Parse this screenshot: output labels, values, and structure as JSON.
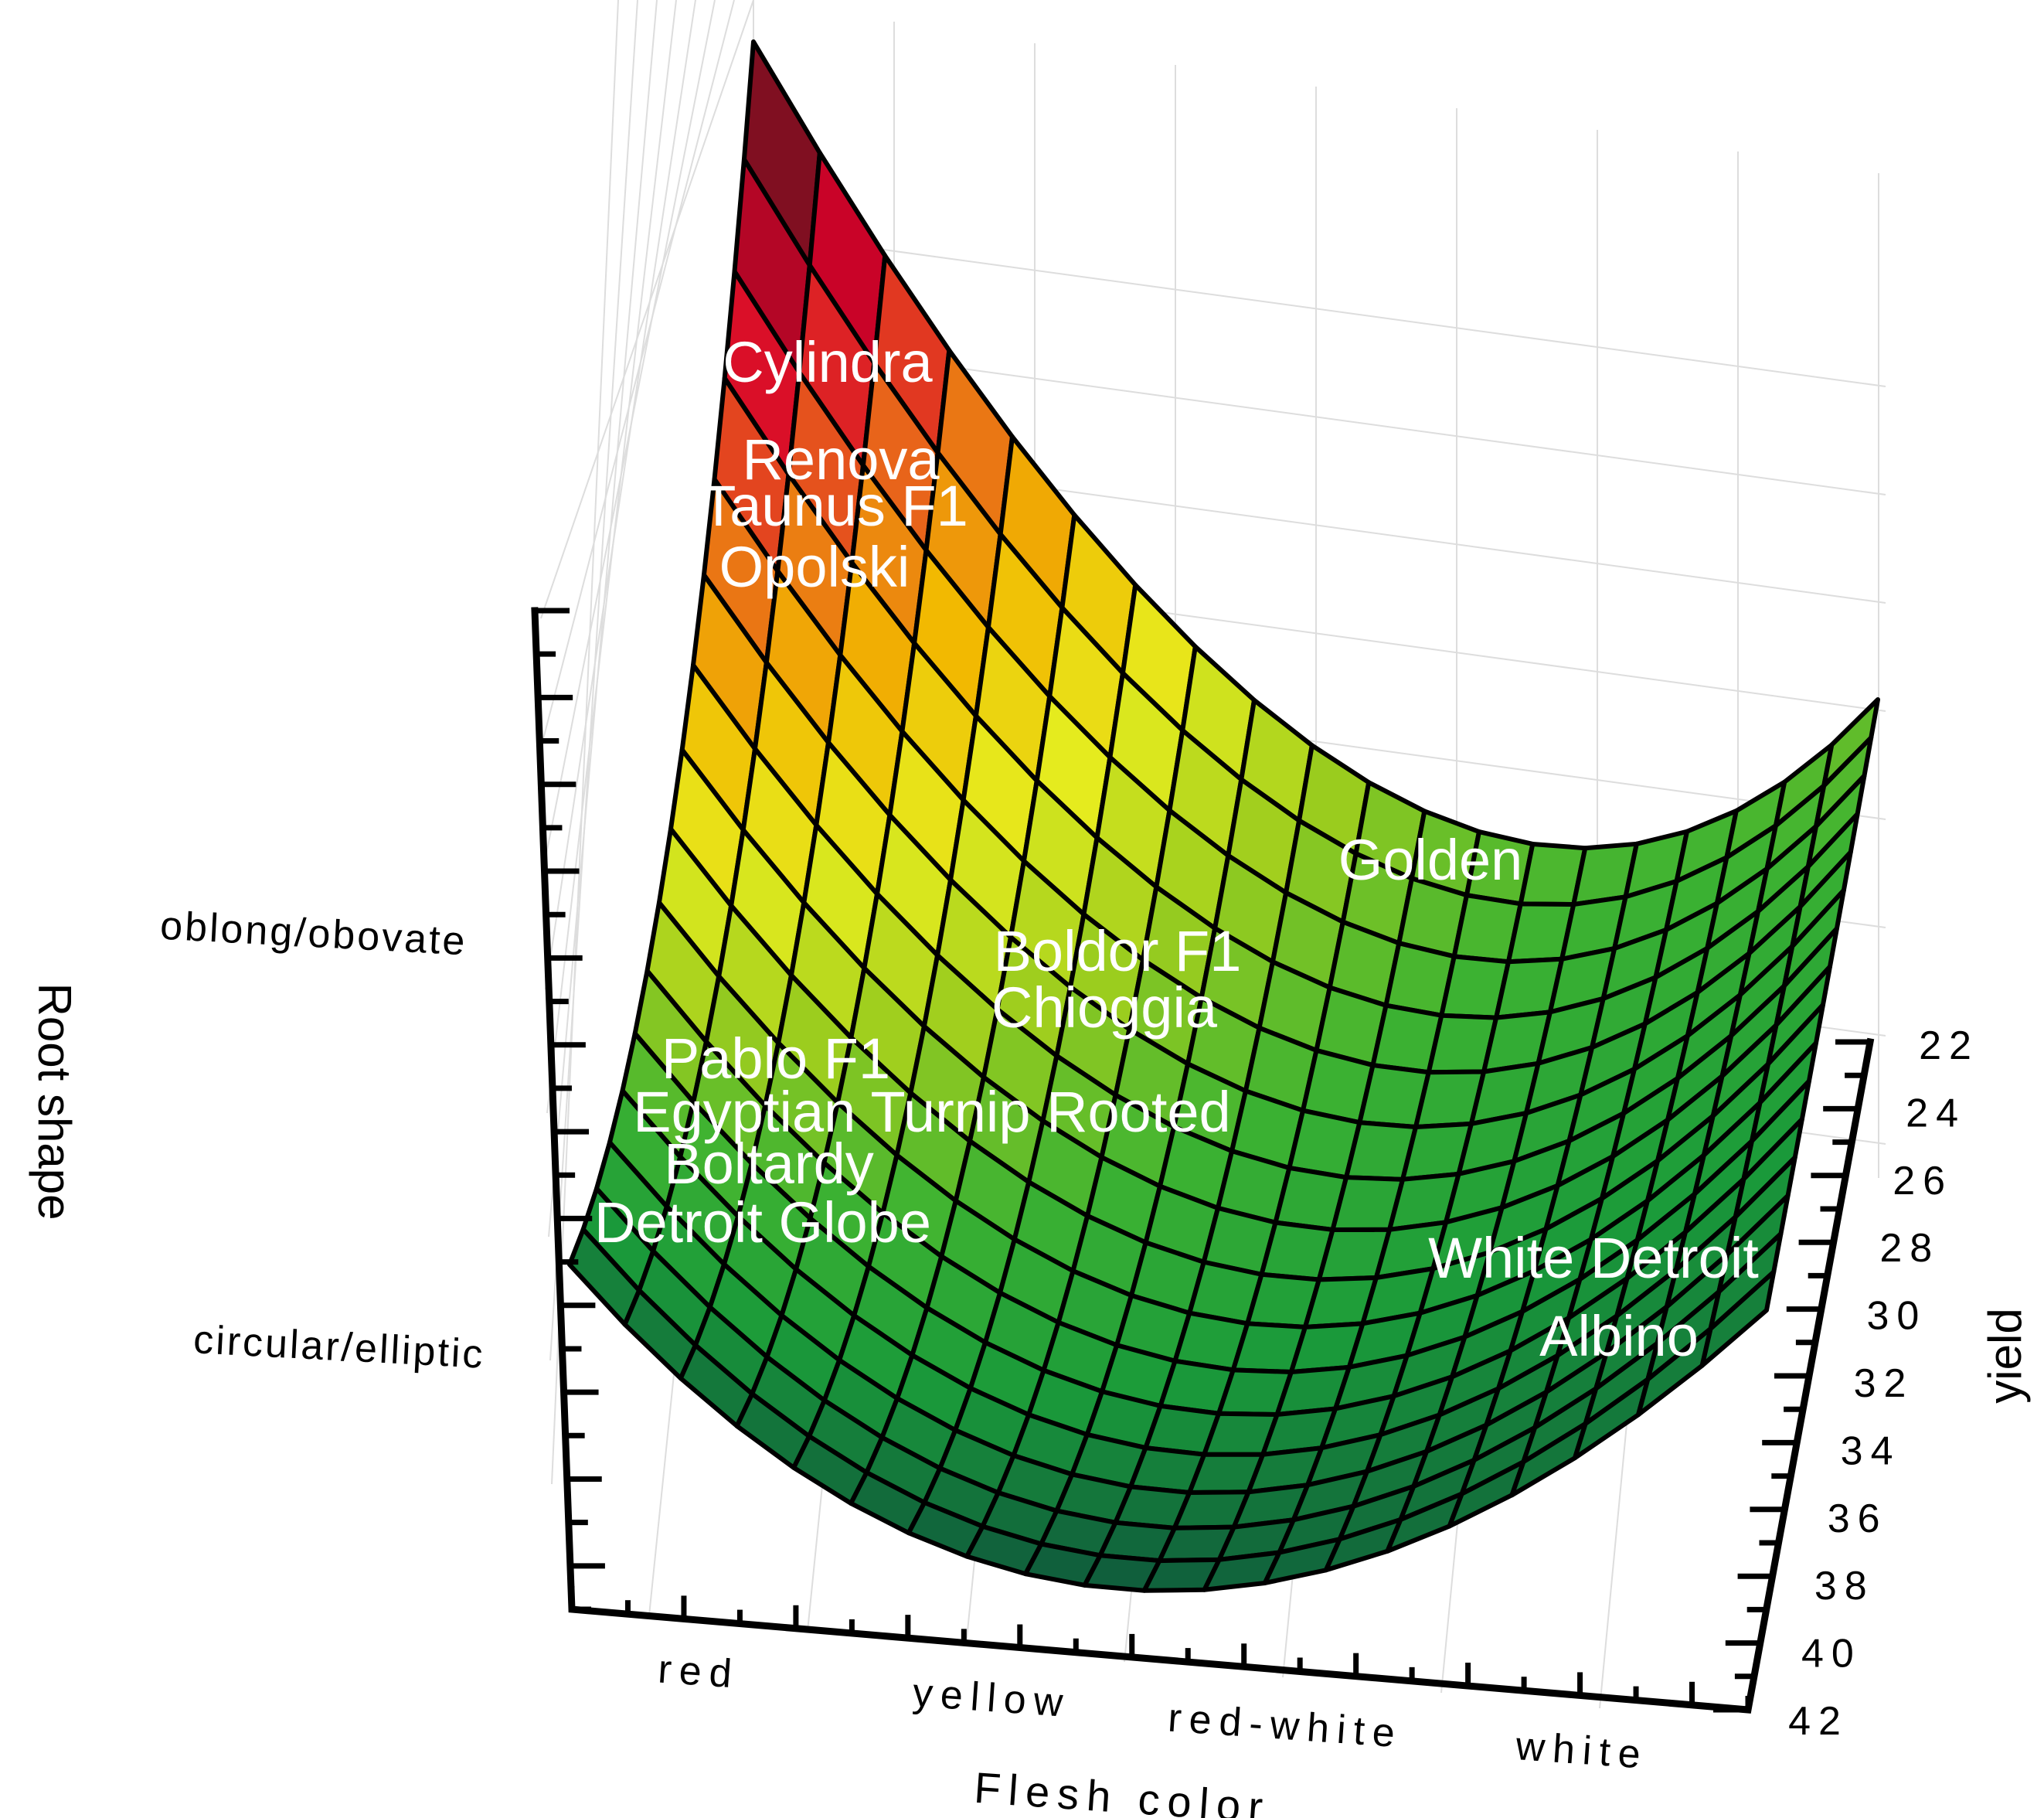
{
  "chart_data": {
    "type": "surface",
    "title": "",
    "xlabel": "Flesh color",
    "ylabel": "Root shape",
    "zlabel": "yield",
    "x_categories": [
      "red",
      "yellow",
      "red-white",
      "white"
    ],
    "y_categories": [
      "oblong/obovate",
      "circular/elliptic"
    ],
    "z_ticks": [
      "22",
      "24",
      "26",
      "28",
      "30",
      "32",
      "34",
      "36",
      "38",
      "40",
      "42"
    ],
    "zlim": [
      22,
      42
    ],
    "z_axis_inverted": true,
    "grid": true,
    "colormap": [
      "#0f5a3c",
      "#1a9a3a",
      "#3cb232",
      "#9ccd1e",
      "#e6ec1e",
      "#f2b800",
      "#e8641a",
      "#d8002a",
      "#7a1020"
    ],
    "annotations": [
      {
        "label": "Cylindra"
      },
      {
        "label": "Renova"
      },
      {
        "label": "Taunus F1"
      },
      {
        "label": "Opolski"
      },
      {
        "label": "Golden"
      },
      {
        "label": "Boldor F1"
      },
      {
        "label": "Chioggia"
      },
      {
        "label": "Pablo F1"
      },
      {
        "label": "Egyptian Turnip Rooted"
      },
      {
        "label": "Boltardy"
      },
      {
        "label": "Detroit Globe"
      },
      {
        "label": "White Detroit"
      },
      {
        "label": "Albino"
      }
    ]
  }
}
